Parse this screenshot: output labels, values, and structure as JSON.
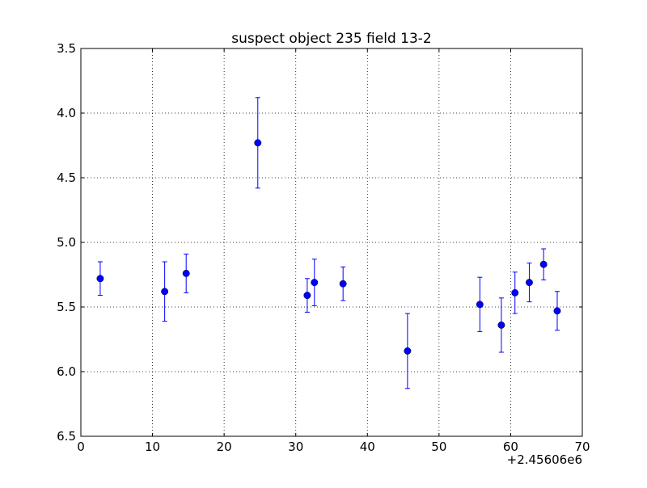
{
  "chart_data": {
    "type": "scatter",
    "title": "suspect object 235 field 13-2",
    "xlabel": "",
    "ylabel": "",
    "x_offset_label": "+2.45606e6",
    "xlim": [
      0,
      70
    ],
    "ylim": [
      6.5,
      3.5
    ],
    "y_inverted": true,
    "grid": true,
    "x_ticks": [
      "0",
      "10",
      "20",
      "30",
      "40",
      "50",
      "60",
      "70"
    ],
    "y_ticks": [
      "3.5",
      "4.0",
      "4.5",
      "5.0",
      "5.5",
      "6.0",
      "6.5"
    ],
    "series": [
      {
        "color": "#0000ff",
        "points": [
          {
            "x": 2.7,
            "y": 5.28,
            "err": 0.13
          },
          {
            "x": 11.7,
            "y": 5.38,
            "err": 0.23
          },
          {
            "x": 14.7,
            "y": 5.24,
            "err": 0.15
          },
          {
            "x": 24.7,
            "y": 4.23,
            "err": 0.35
          },
          {
            "x": 31.6,
            "y": 5.41,
            "err": 0.13
          },
          {
            "x": 32.6,
            "y": 5.31,
            "err": 0.18
          },
          {
            "x": 36.6,
            "y": 5.32,
            "err": 0.13
          },
          {
            "x": 45.6,
            "y": 5.84,
            "err": 0.29
          },
          {
            "x": 55.7,
            "y": 5.48,
            "err": 0.21
          },
          {
            "x": 58.7,
            "y": 5.64,
            "err": 0.21
          },
          {
            "x": 60.6,
            "y": 5.39,
            "err": 0.16
          },
          {
            "x": 62.6,
            "y": 5.31,
            "err": 0.15
          },
          {
            "x": 64.6,
            "y": 5.17,
            "err": 0.12
          },
          {
            "x": 66.5,
            "y": 5.53,
            "err": 0.15
          }
        ]
      }
    ]
  }
}
